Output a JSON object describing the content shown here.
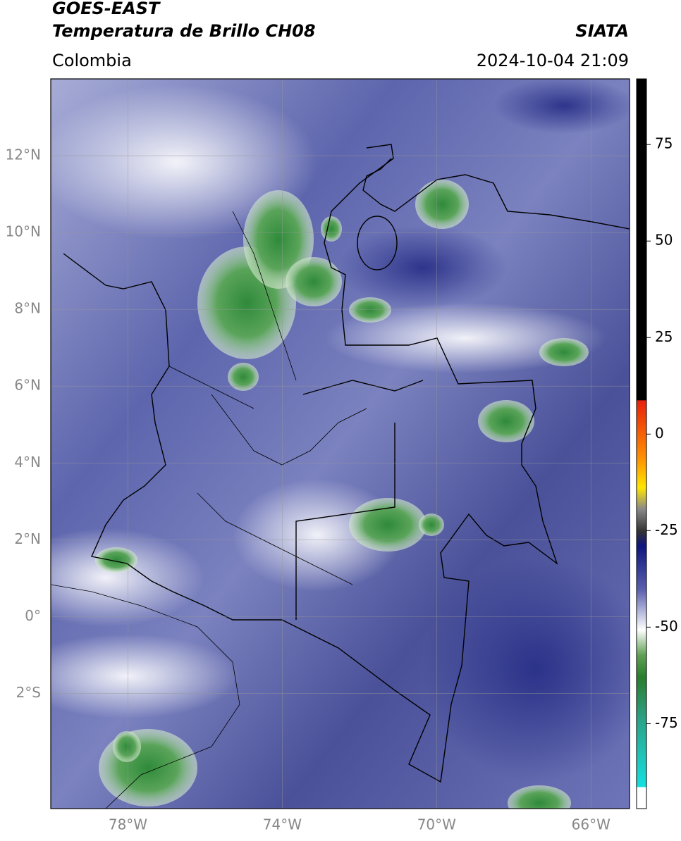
{
  "header": {
    "source": "GOES-EAST",
    "title": "Temperatura de Brillo CH08",
    "region": "Colombia",
    "organization": "SIATA",
    "datetime": "2024-10-04 21:09"
  },
  "map": {
    "xlim": [
      -80,
      -65
    ],
    "ylim": [
      -5,
      14
    ],
    "xticks": [
      {
        "value": -78,
        "label": "78°W"
      },
      {
        "value": -74,
        "label": "74°W"
      },
      {
        "value": -70,
        "label": "70°W"
      },
      {
        "value": -66,
        "label": "66°W"
      }
    ],
    "yticks": [
      {
        "value": 12,
        "label": "12°N"
      },
      {
        "value": 10,
        "label": "10°N"
      },
      {
        "value": 8,
        "label": "8°N"
      },
      {
        "value": 6,
        "label": "6°N"
      },
      {
        "value": 4,
        "label": "4°N"
      },
      {
        "value": 2,
        "label": "2°N"
      },
      {
        "value": 0,
        "label": "0°"
      },
      {
        "value": -2,
        "label": "2°S"
      }
    ],
    "grid": true
  },
  "colorbar": {
    "lim": [
      -97,
      92
    ],
    "ticks": [
      75,
      50,
      25,
      0,
      -25,
      -50,
      -75
    ]
  }
}
